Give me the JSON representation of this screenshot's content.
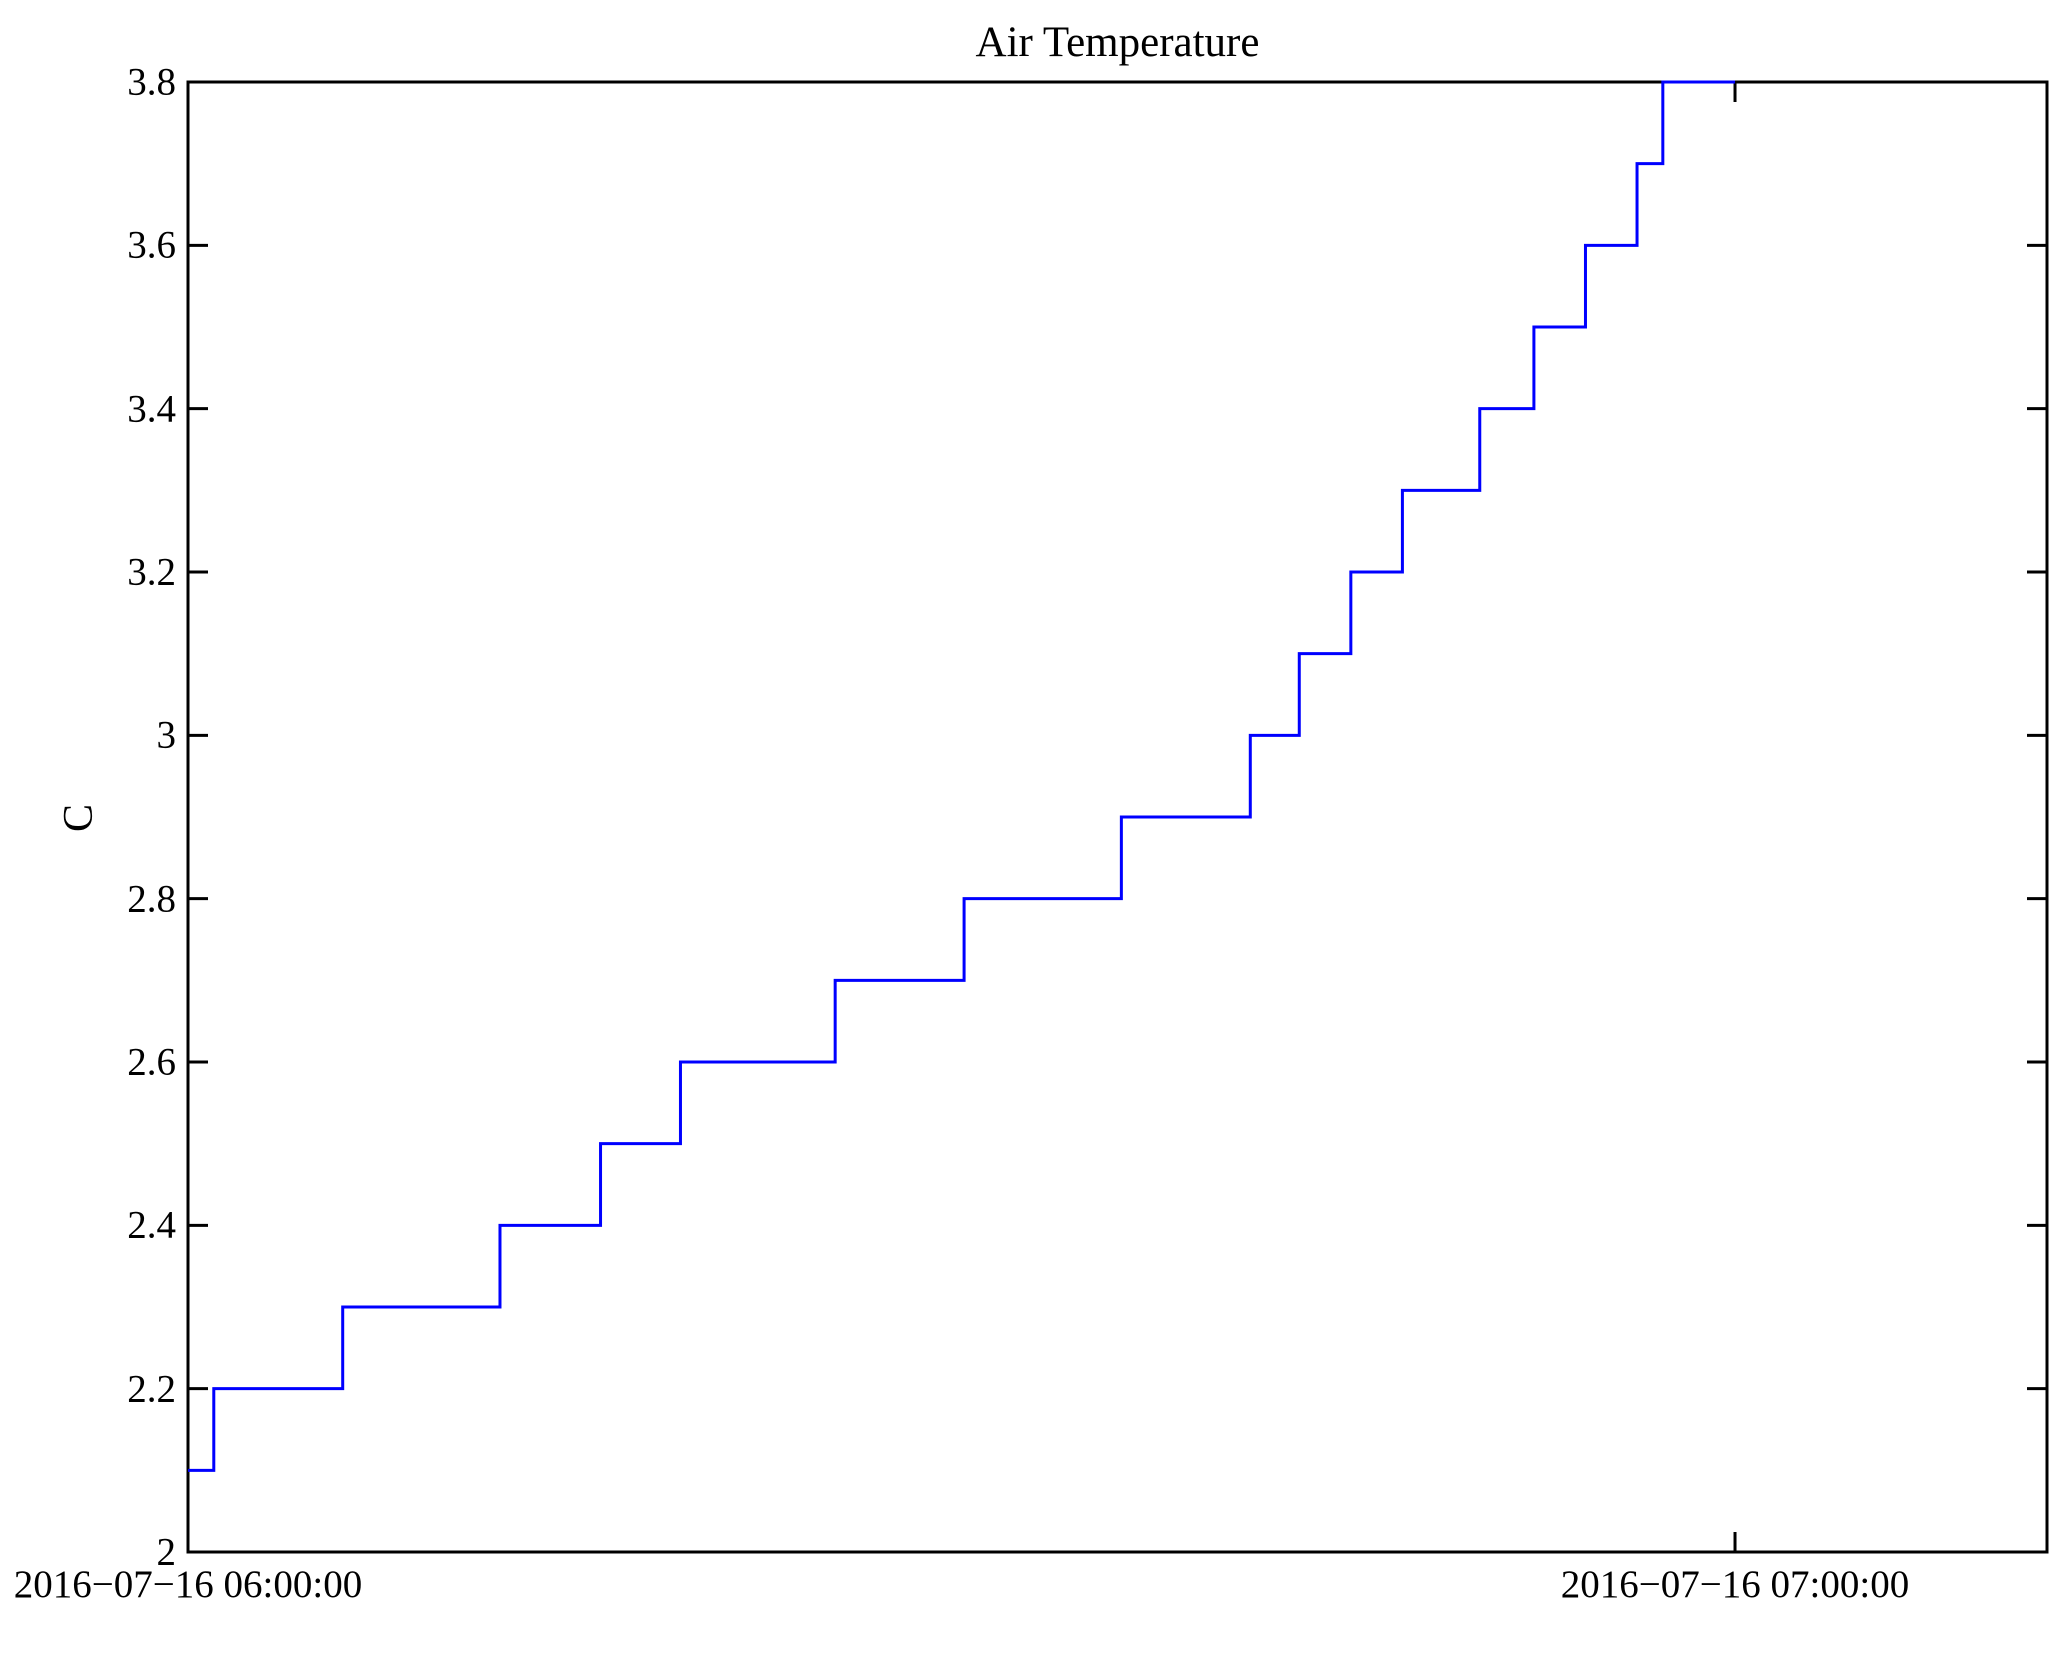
{
  "figure": {
    "title": "Air Temperature",
    "y_axis": {
      "label": "C",
      "tick_labels": [
        "2",
        "2.2",
        "2.4",
        "2.6",
        "2.8",
        "3",
        "3.2",
        "3.4",
        "3.6",
        "3.8"
      ],
      "tick_values": [
        2,
        2.2,
        2.4,
        2.6,
        2.8,
        3,
        3.2,
        3.4,
        3.6,
        3.8
      ]
    },
    "x_axis": {
      "tick_labels": [
        "2016−07−16 06:00:00",
        "2016−07−16 07:00:00"
      ],
      "tick_minutes": [
        0,
        60
      ]
    }
  },
  "chart_data": {
    "type": "line",
    "line_style": "steps-post",
    "title": "Air Temperature",
    "xlabel": "",
    "ylabel": "C",
    "legend": "none",
    "grid": false,
    "background": "#ffffff",
    "axis_color": "#000000",
    "line_color": "#0000ff",
    "ylim": [
      2,
      3.8
    ],
    "xlim_minutes": [
      0,
      72.1
    ],
    "x_start_label": "2016−07−16 06:00:00",
    "x_end_data_label": "2016−07−16 07:00:00",
    "steps": [
      {
        "value": 2.1,
        "from_min": 0.0,
        "to_min": 1.0
      },
      {
        "value": 2.2,
        "from_min": 1.0,
        "to_min": 6.0
      },
      {
        "value": 2.3,
        "from_min": 6.0,
        "to_min": 12.1
      },
      {
        "value": 2.4,
        "from_min": 12.1,
        "to_min": 16.0
      },
      {
        "value": 2.5,
        "from_min": 16.0,
        "to_min": 19.1
      },
      {
        "value": 2.6,
        "from_min": 19.1,
        "to_min": 25.1
      },
      {
        "value": 2.7,
        "from_min": 25.1,
        "to_min": 30.1
      },
      {
        "value": 2.8,
        "from_min": 30.1,
        "to_min": 36.2
      },
      {
        "value": 2.9,
        "from_min": 36.2,
        "to_min": 41.2
      },
      {
        "value": 3.0,
        "from_min": 41.2,
        "to_min": 43.1
      },
      {
        "value": 3.1,
        "from_min": 43.1,
        "to_min": 45.1
      },
      {
        "value": 3.2,
        "from_min": 45.1,
        "to_min": 47.1
      },
      {
        "value": 3.3,
        "from_min": 47.1,
        "to_min": 50.1
      },
      {
        "value": 3.4,
        "from_min": 50.1,
        "to_min": 52.2
      },
      {
        "value": 3.5,
        "from_min": 52.2,
        "to_min": 54.2
      },
      {
        "value": 3.6,
        "from_min": 54.2,
        "to_min": 56.2
      },
      {
        "value": 3.7,
        "from_min": 56.2,
        "to_min": 57.2
      },
      {
        "value": 3.8,
        "from_min": 57.2,
        "to_min": 60.0
      }
    ]
  }
}
